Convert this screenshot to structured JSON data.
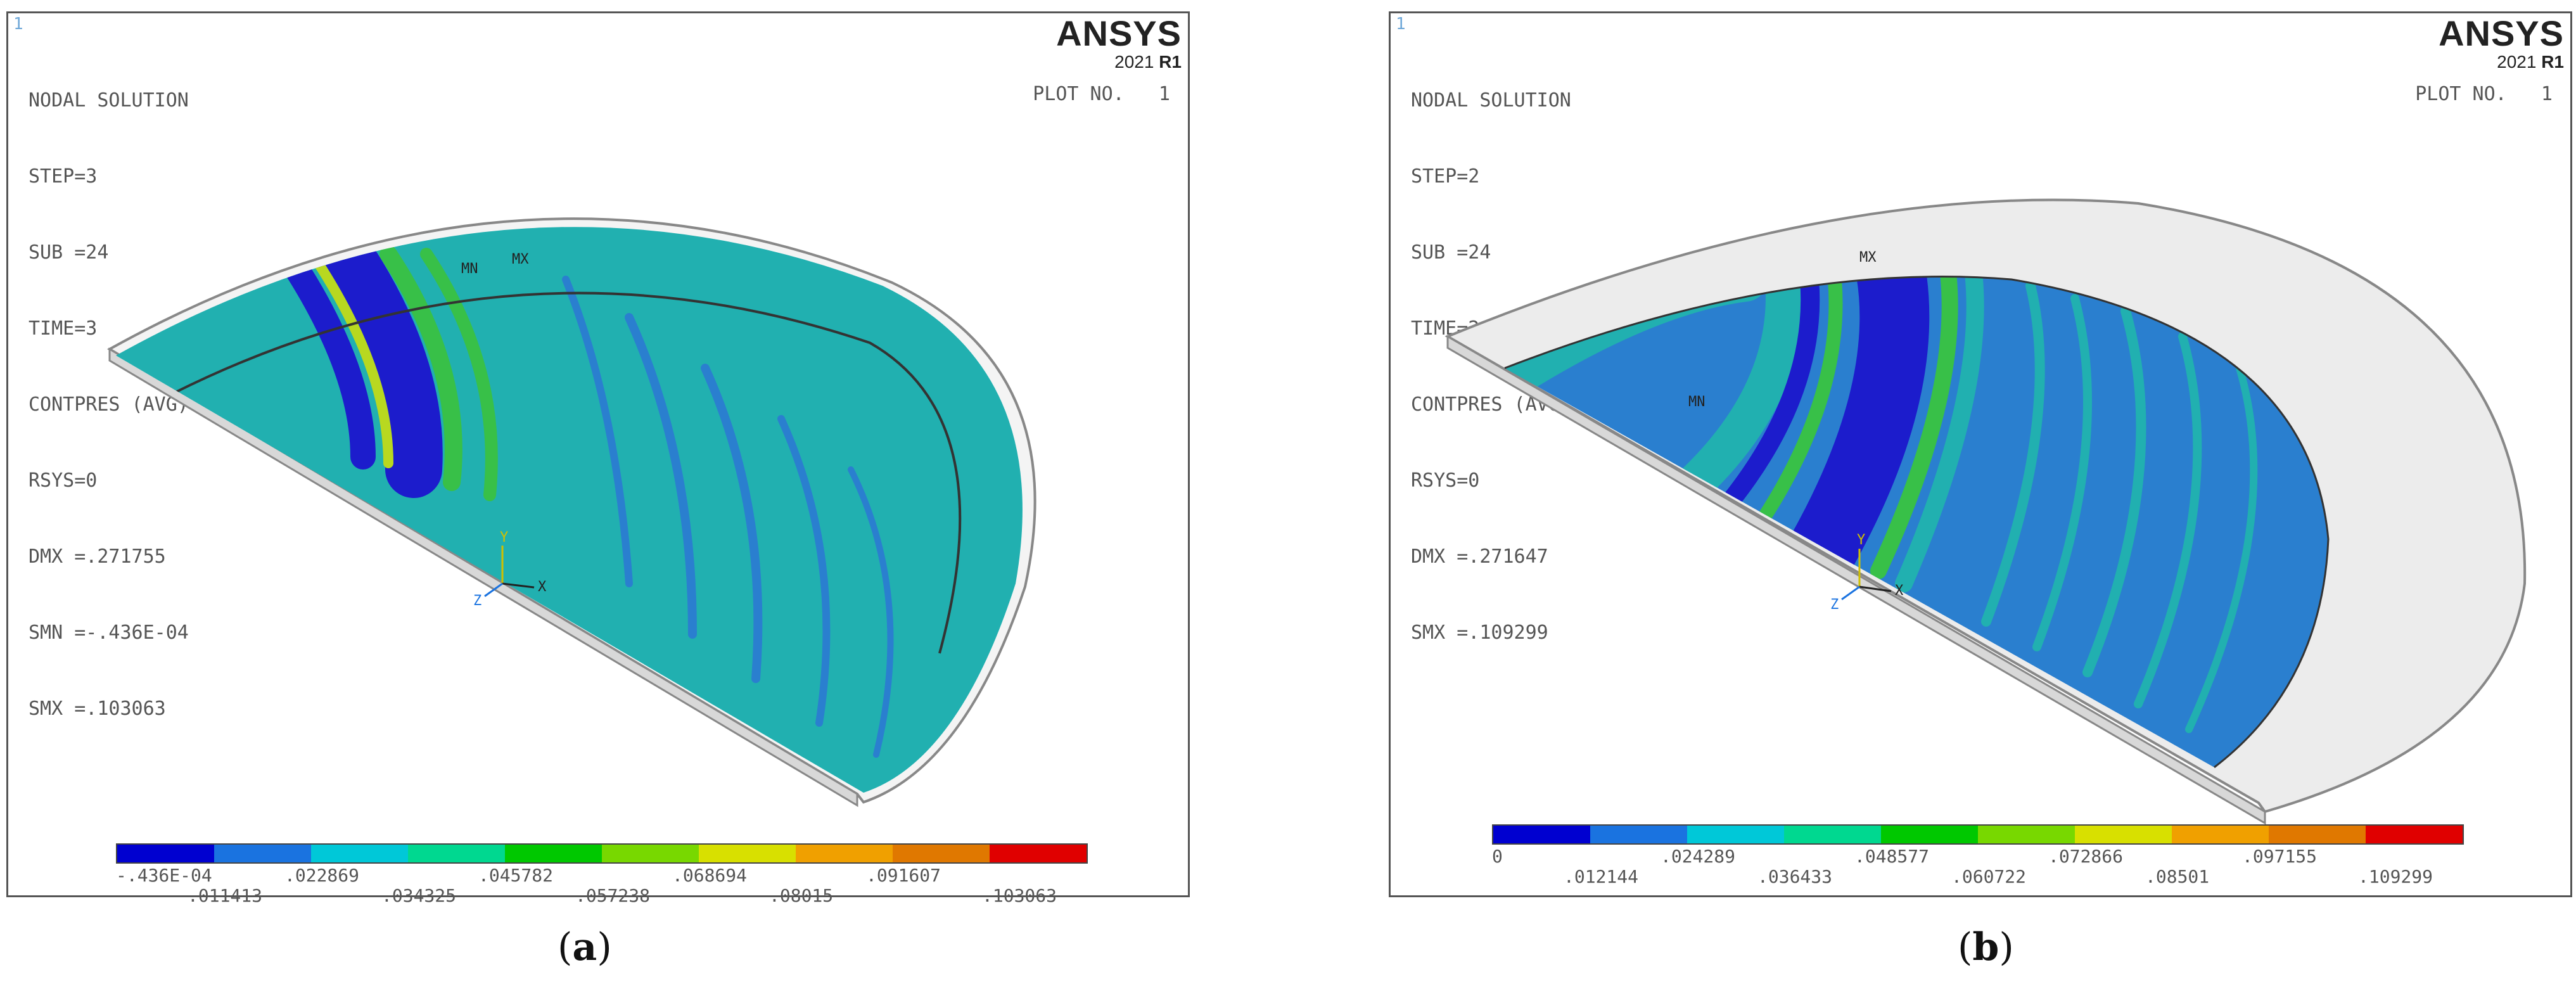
{
  "panels": {
    "a": {
      "corner_mark": "1",
      "title": "NODAL SOLUTION",
      "lines": [
        "STEP=3",
        "SUB =24",
        "TIME=3",
        "CONTPRES (AVG)",
        "RSYS=0",
        "DMX =.271755",
        "SMN =-.436E-04",
        "SMX =.103063"
      ],
      "logo": "ANSYS",
      "version_year": "2021",
      "version_rel": "R1",
      "plot_no": "PLOT NO.   1",
      "mn_label": "MN",
      "mx_label": "MX",
      "triad": {
        "x": "X",
        "y": "Y",
        "z": "Z"
      },
      "legend_upper": [
        "-.436E-04",
        ".022869",
        ".045782",
        ".068694",
        ".091607"
      ],
      "legend_lower": [
        ".011413",
        ".034325",
        ".057238",
        ".08015",
        ".103063"
      ],
      "caption_open": "(",
      "caption_letter": "a",
      "caption_close": ")"
    },
    "b": {
      "corner_mark": "1",
      "title": "NODAL SOLUTION",
      "lines": [
        "STEP=2",
        "SUB =24",
        "TIME=2",
        "CONTPRES (AVG)",
        "RSYS=0",
        "DMX =.271647",
        "SMX =.109299"
      ],
      "logo": "ANSYS",
      "version_year": "2021",
      "version_rel": "R1",
      "plot_no": "PLOT NO.   1",
      "mn_label": "MN",
      "mx_label": "MX",
      "triad": {
        "x": "X",
        "y": "Y",
        "z": "Z"
      },
      "legend_upper": [
        "0",
        ".024289",
        ".048577",
        ".072866",
        ".097155"
      ],
      "legend_lower": [
        ".012144",
        ".036433",
        ".060722",
        ".08501",
        ".109299"
      ],
      "caption_open": "(",
      "caption_letter": "b",
      "caption_close": ")"
    }
  },
  "legend_colors": [
    "#0000d0",
    "#1a73e0",
    "#00c8d8",
    "#00d890",
    "#00c800",
    "#78d800",
    "#d8e000",
    "#f0a000",
    "#e07800",
    "#e00000"
  ],
  "contour_colors": {
    "dark_blue": "#1c1ccc",
    "mid_blue": "#2a7fcf",
    "teal": "#21b0b0",
    "green": "#38c048",
    "yellow_green": "#b8d820",
    "outer_ring_b": "#ececec"
  }
}
